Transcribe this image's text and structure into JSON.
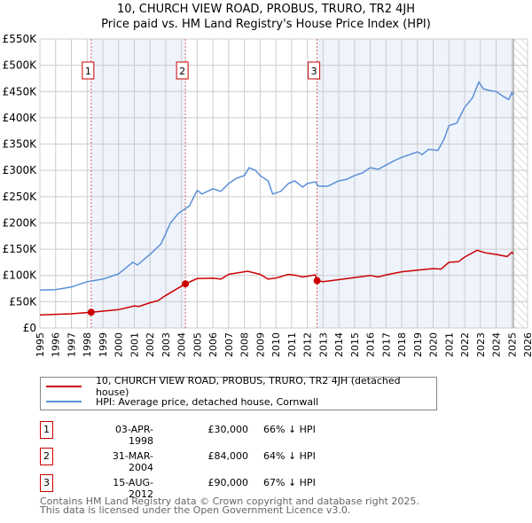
{
  "chart_data": {
    "type": "line",
    "title": "10, CHURCH VIEW ROAD, PROBUS, TRURO, TR2 4JH",
    "subtitle": "Price paid vs. HM Land Registry's House Price Index (HPI)",
    "xlim": [
      1995,
      2026
    ],
    "ylim": [
      0,
      550000
    ],
    "x_ticks": [
      "1995",
      "1996",
      "1997",
      "1998",
      "1999",
      "2000",
      "2001",
      "2002",
      "2003",
      "2004",
      "2005",
      "2006",
      "2007",
      "2008",
      "2009",
      "2010",
      "2011",
      "2012",
      "2013",
      "2014",
      "2015",
      "2016",
      "2017",
      "2018",
      "2019",
      "2020",
      "2021",
      "2022",
      "2023",
      "2024",
      "2025",
      "2026"
    ],
    "y_ticks": [
      {
        "v": 0,
        "label": "£0"
      },
      {
        "v": 50000,
        "label": "£50K"
      },
      {
        "v": 100000,
        "label": "£100K"
      },
      {
        "v": 150000,
        "label": "£150K"
      },
      {
        "v": 200000,
        "label": "£200K"
      },
      {
        "v": 250000,
        "label": "£250K"
      },
      {
        "v": 300000,
        "label": "£300K"
      },
      {
        "v": 350000,
        "label": "£350K"
      },
      {
        "v": 400000,
        "label": "£400K"
      },
      {
        "v": 450000,
        "label": "£450K"
      },
      {
        "v": 500000,
        "label": "£500K"
      },
      {
        "v": 550000,
        "label": "£550K"
      }
    ],
    "shaded_ranges": [
      [
        1998.26,
        2004.25
      ],
      [
        2012.62,
        2025.1
      ]
    ],
    "hatched_from": 2025.1,
    "series": [
      {
        "name": "10, CHURCH VIEW ROAD, PROBUS, TRURO, TR2 4JH (detached house)",
        "color": "#cc0000",
        "x": [
          1995,
          1996,
          1997,
          1998.26,
          1999,
          2000,
          2001,
          2001.3,
          2002,
          2002.5,
          2003,
          2004.25,
          2005,
          2006,
          2006.5,
          2007,
          2008.2,
          2009,
          2009.5,
          2010,
          2010.8,
          2011.3,
          2011.7,
          2012.5,
          2012.62,
          2013,
          2014,
          2015,
          2016,
          2016.5,
          2017,
          2018,
          2019,
          2020,
          2020.5,
          2021,
          2021.6,
          2022,
          2022.8,
          2023.3,
          2024,
          2024.7,
          2025,
          2025.1
        ],
        "y": [
          25000,
          26000,
          27000,
          30000,
          32000,
          35000,
          42000,
          41000,
          48000,
          52000,
          62000,
          84000,
          94000,
          95000,
          93000,
          102000,
          108000,
          102000,
          93000,
          95000,
          102000,
          100000,
          97000,
          101000,
          90000,
          88000,
          92000,
          96000,
          100000,
          97000,
          101000,
          107000,
          110000,
          113000,
          112000,
          125000,
          126000,
          135000,
          148000,
          143000,
          140000,
          136000,
          144000,
          141000
        ]
      },
      {
        "name": "HPI: Average price, detached house, Cornwall",
        "color": "#5b8fd6",
        "x": [
          1995,
          1996,
          1997,
          1998,
          1999,
          2000,
          2000.9,
          2001.2,
          2002,
          2002.7,
          2003.3,
          2003.8,
          2004.5,
          2005,
          2005.3,
          2006,
          2006.5,
          2007,
          2007.5,
          2008,
          2008.3,
          2008.7,
          2009,
          2009.5,
          2009.8,
          2010.3,
          2010.8,
          2011.2,
          2011.7,
          2012,
          2012.5,
          2012.7,
          2013.3,
          2014,
          2014.5,
          2015,
          2015.5,
          2016,
          2016.5,
          2017,
          2017.5,
          2018,
          2018.5,
          2019,
          2019.3,
          2019.7,
          2020.3,
          2020.7,
          2021,
          2021.5,
          2022,
          2022.5,
          2022.9,
          2023.2,
          2023.6,
          2024,
          2024.5,
          2024.8,
          2025,
          2025.1
        ],
        "y": [
          72000,
          73000,
          78000,
          88000,
          93000,
          103000,
          125000,
          120000,
          140000,
          160000,
          200000,
          218000,
          232000,
          262000,
          255000,
          265000,
          260000,
          275000,
          285000,
          290000,
          305000,
          300000,
          290000,
          280000,
          255000,
          260000,
          275000,
          280000,
          268000,
          275000,
          278000,
          270000,
          270000,
          280000,
          283000,
          290000,
          295000,
          305000,
          302000,
          310000,
          318000,
          325000,
          330000,
          335000,
          330000,
          340000,
          338000,
          360000,
          385000,
          390000,
          420000,
          438000,
          468000,
          455000,
          452000,
          450000,
          440000,
          435000,
          448000,
          443000
        ]
      }
    ],
    "sales": [
      {
        "num": "1",
        "x": 1998.26,
        "y": 30000,
        "date": "03-APR-1998",
        "price": "£30,000",
        "hpi": "66% ↓ HPI"
      },
      {
        "num": "2",
        "x": 2004.25,
        "y": 84000,
        "date": "31-MAR-2004",
        "price": "£84,000",
        "hpi": "64% ↓ HPI"
      },
      {
        "num": "3",
        "x": 2012.62,
        "y": 90000,
        "date": "15-AUG-2012",
        "price": "£90,000",
        "hpi": "67% ↓ HPI"
      }
    ]
  },
  "footer": {
    "line1": "Contains HM Land Registry data © Crown copyright and database right 2025.",
    "line2": "This data is licensed under the Open Government Licence v3.0."
  }
}
